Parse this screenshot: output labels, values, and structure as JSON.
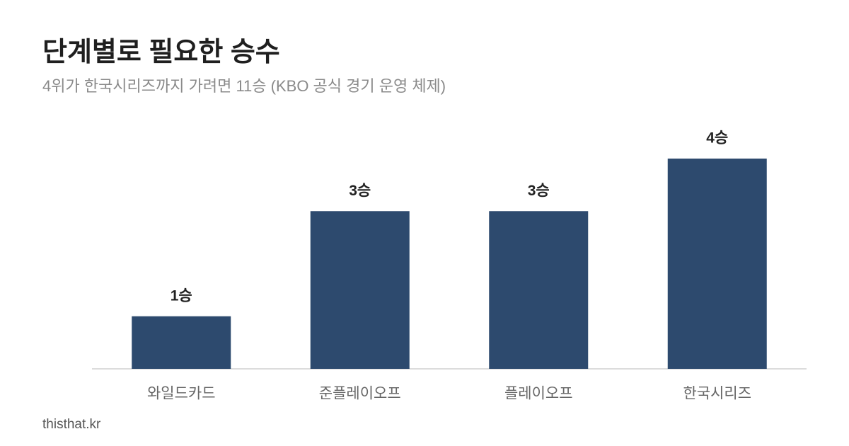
{
  "chart_data": {
    "type": "bar",
    "title": "단계별로 필요한 승수",
    "subtitle": "4위가 한국시리즈까지 가려면 11승 (KBO 공식 경기 운영 체제)",
    "categories": [
      "와일드카드",
      "준플레이오프",
      "플레이오프",
      "한국시리즈"
    ],
    "values": [
      1,
      3,
      3,
      4
    ],
    "value_labels": [
      "1승",
      "3승",
      "3승",
      "4승"
    ],
    "color": "#2d4a6e",
    "source": "thisthat.kr"
  }
}
